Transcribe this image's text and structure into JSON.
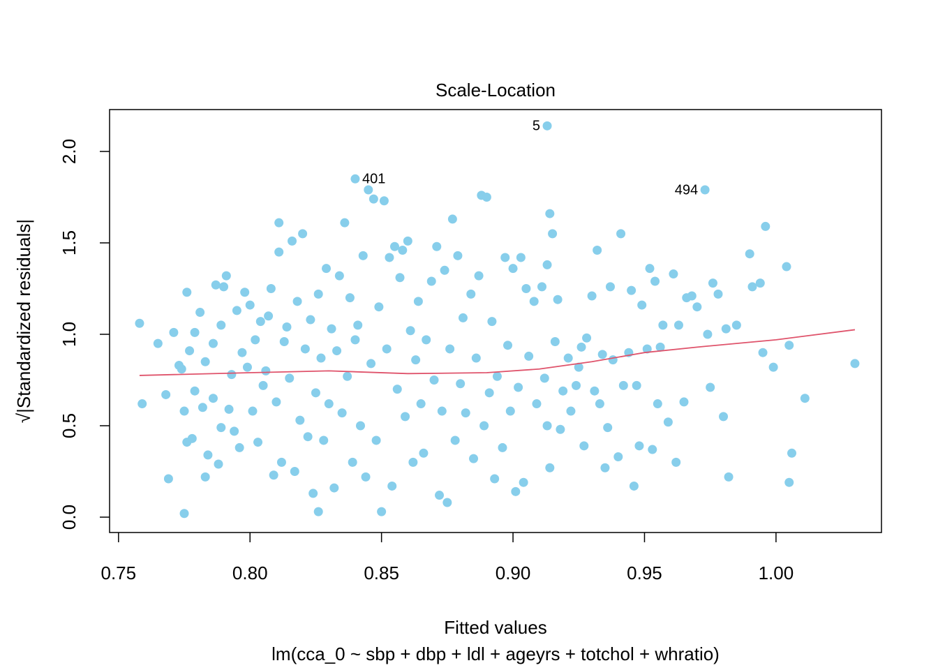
{
  "chart_data": {
    "type": "scatter",
    "title": "Scale-Location",
    "xlabel": "Fitted values",
    "caption": "lm(cca_0 ~ sbp + dbp + ldl + ageyrs + totchol + whratio)",
    "ylabel": "√|Standardized residuals|",
    "color": "#87CEEB",
    "xlim": [
      0.7466,
      1.0401
    ],
    "ylim": [
      -0.084,
      2.229
    ],
    "xticks": [
      {
        "value": 0.75,
        "label": "0.75"
      },
      {
        "value": 0.8,
        "label": "0.80"
      },
      {
        "value": 0.85,
        "label": "0.85"
      },
      {
        "value": 0.9,
        "label": "0.90"
      },
      {
        "value": 0.95,
        "label": "0.95"
      },
      {
        "value": 1.0,
        "label": "1.00"
      }
    ],
    "yticks": [
      {
        "value": 0,
        "label": "0.0"
      },
      0.5,
      {
        "value": 1,
        "label": "1.0"
      },
      1.5,
      {
        "value": 2,
        "label": "2.0"
      }
    ],
    "x": [
      0.758,
      0.759,
      0.765,
      0.768,
      0.769,
      0.771,
      0.773,
      0.774,
      0.775,
      0.775,
      0.776,
      0.776,
      0.777,
      0.778,
      0.779,
      0.779,
      0.781,
      0.782,
      0.783,
      0.783,
      0.784,
      0.786,
      0.786,
      0.787,
      0.788,
      0.789,
      0.789,
      0.79,
      0.791,
      0.792,
      0.793,
      0.794,
      0.795,
      0.796,
      0.797,
      0.798,
      0.799,
      0.8,
      0.801,
      0.802,
      0.803,
      0.804,
      0.805,
      0.806,
      0.807,
      0.808,
      0.809,
      0.81,
      0.811,
      0.811,
      0.812,
      0.813,
      0.814,
      0.815,
      0.816,
      0.817,
      0.818,
      0.819,
      0.82,
      0.821,
      0.822,
      0.823,
      0.824,
      0.825,
      0.826,
      0.826,
      0.827,
      0.828,
      0.829,
      0.83,
      0.831,
      0.832,
      0.833,
      0.834,
      0.835,
      0.836,
      0.837,
      0.838,
      0.839,
      0.84,
      0.84,
      0.841,
      0.842,
      0.843,
      0.844,
      0.845,
      0.846,
      0.847,
      0.848,
      0.849,
      0.85,
      0.851,
      0.852,
      0.853,
      0.854,
      0.855,
      0.856,
      0.857,
      0.858,
      0.859,
      0.86,
      0.861,
      0.862,
      0.863,
      0.864,
      0.865,
      0.866,
      0.867,
      0.869,
      0.87,
      0.871,
      0.872,
      0.873,
      0.874,
      0.875,
      0.876,
      0.877,
      0.878,
      0.879,
      0.88,
      0.881,
      0.882,
      0.884,
      0.885,
      0.886,
      0.887,
      0.888,
      0.889,
      0.89,
      0.891,
      0.892,
      0.893,
      0.894,
      0.896,
      0.897,
      0.898,
      0.899,
      0.9,
      0.901,
      0.902,
      0.903,
      0.904,
      0.905,
      0.906,
      0.908,
      0.909,
      0.911,
      0.912,
      0.913,
      0.913,
      0.913,
      0.914,
      0.914,
      0.915,
      0.916,
      0.917,
      0.918,
      0.919,
      0.921,
      0.922,
      0.924,
      0.925,
      0.926,
      0.927,
      0.928,
      0.93,
      0.931,
      0.932,
      0.933,
      0.934,
      0.935,
      0.936,
      0.937,
      0.938,
      0.94,
      0.941,
      0.942,
      0.944,
      0.945,
      0.946,
      0.947,
      0.948,
      0.949,
      0.951,
      0.952,
      0.953,
      0.954,
      0.955,
      0.956,
      0.957,
      0.959,
      0.961,
      0.962,
      0.963,
      0.965,
      0.966,
      0.968,
      0.97,
      0.973,
      0.974,
      0.975,
      0.976,
      0.978,
      0.98,
      0.981,
      0.982,
      0.985,
      0.99,
      0.991,
      0.994,
      0.995,
      0.996,
      0.999,
      1.004,
      1.005,
      1.005,
      1.006,
      1.011,
      1.03
    ],
    "y": [
      1.06,
      0.62,
      0.95,
      0.67,
      0.21,
      1.01,
      0.83,
      0.81,
      0.58,
      0.02,
      1.23,
      0.41,
      0.91,
      0.43,
      0.69,
      1.01,
      1.12,
      0.6,
      0.22,
      0.85,
      0.34,
      0.95,
      0.65,
      1.27,
      0.29,
      1.05,
      0.49,
      1.26,
      1.32,
      0.59,
      0.78,
      0.47,
      1.13,
      0.38,
      0.9,
      1.23,
      0.82,
      1.16,
      0.58,
      0.97,
      0.41,
      1.07,
      0.72,
      0.8,
      1.1,
      1.25,
      0.23,
      0.63,
      1.45,
      1.61,
      0.3,
      0.96,
      1.04,
      0.76,
      1.51,
      0.25,
      1.18,
      0.53,
      1.55,
      0.92,
      0.44,
      1.08,
      0.13,
      0.68,
      0.03,
      1.22,
      0.87,
      0.42,
      1.36,
      0.62,
      1.03,
      0.16,
      0.91,
      1.32,
      0.57,
      1.61,
      0.77,
      1.2,
      0.3,
      1.85,
      0.97,
      1.05,
      0.5,
      1.43,
      0.22,
      1.79,
      0.84,
      1.74,
      0.42,
      1.15,
      0.03,
      1.73,
      0.92,
      1.42,
      0.17,
      1.48,
      0.7,
      1.31,
      1.46,
      0.55,
      1.51,
      1.02,
      0.3,
      0.86,
      1.18,
      0.62,
      0.35,
      0.97,
      1.29,
      0.75,
      1.48,
      0.12,
      0.58,
      1.35,
      0.08,
      0.92,
      1.63,
      0.42,
      1.43,
      0.73,
      1.09,
      0.57,
      1.22,
      0.32,
      0.87,
      1.32,
      1.76,
      0.5,
      1.75,
      0.68,
      1.07,
      0.21,
      0.77,
      0.38,
      1.42,
      0.94,
      0.58,
      1.36,
      0.14,
      0.71,
      1.42,
      0.19,
      1.25,
      0.88,
      1.18,
      0.62,
      1.26,
      0.76,
      2.14,
      1.38,
      0.5,
      1.66,
      0.27,
      1.55,
      0.96,
      1.19,
      0.48,
      0.69,
      0.87,
      0.58,
      0.72,
      0.82,
      0.93,
      0.39,
      0.98,
      1.21,
      0.69,
      1.46,
      0.62,
      0.89,
      0.27,
      0.49,
      1.26,
      0.86,
      0.33,
      1.55,
      0.72,
      0.9,
      1.24,
      0.17,
      0.72,
      0.39,
      1.16,
      0.92,
      1.36,
      0.37,
      1.29,
      0.62,
      0.93,
      1.05,
      0.52,
      1.33,
      0.3,
      1.05,
      0.63,
      1.2,
      1.21,
      1.15,
      1.79,
      1.0,
      0.71,
      1.28,
      1.22,
      0.55,
      1.03,
      0.22,
      1.05,
      1.44,
      1.26,
      1.28,
      0.9,
      1.59,
      0.82,
      1.37,
      0.94,
      0.19,
      0.35,
      0.65,
      0.84
    ],
    "smooth": {
      "color": "#DF536B",
      "x": [
        0.758,
        0.8,
        0.83,
        0.86,
        0.89,
        0.91,
        0.93,
        0.95,
        0.97,
        1.0,
        1.03
      ],
      "y": [
        0.775,
        0.79,
        0.8,
        0.785,
        0.79,
        0.81,
        0.85,
        0.9,
        0.93,
        0.97,
        1.025
      ]
    },
    "annotations": [
      {
        "text": "5",
        "x": 0.913,
        "y": 2.14,
        "side": "left"
      },
      {
        "text": "401",
        "x": 0.84,
        "y": 1.85,
        "side": "right"
      },
      {
        "text": "494",
        "x": 0.973,
        "y": 1.79,
        "side": "left"
      }
    ]
  }
}
